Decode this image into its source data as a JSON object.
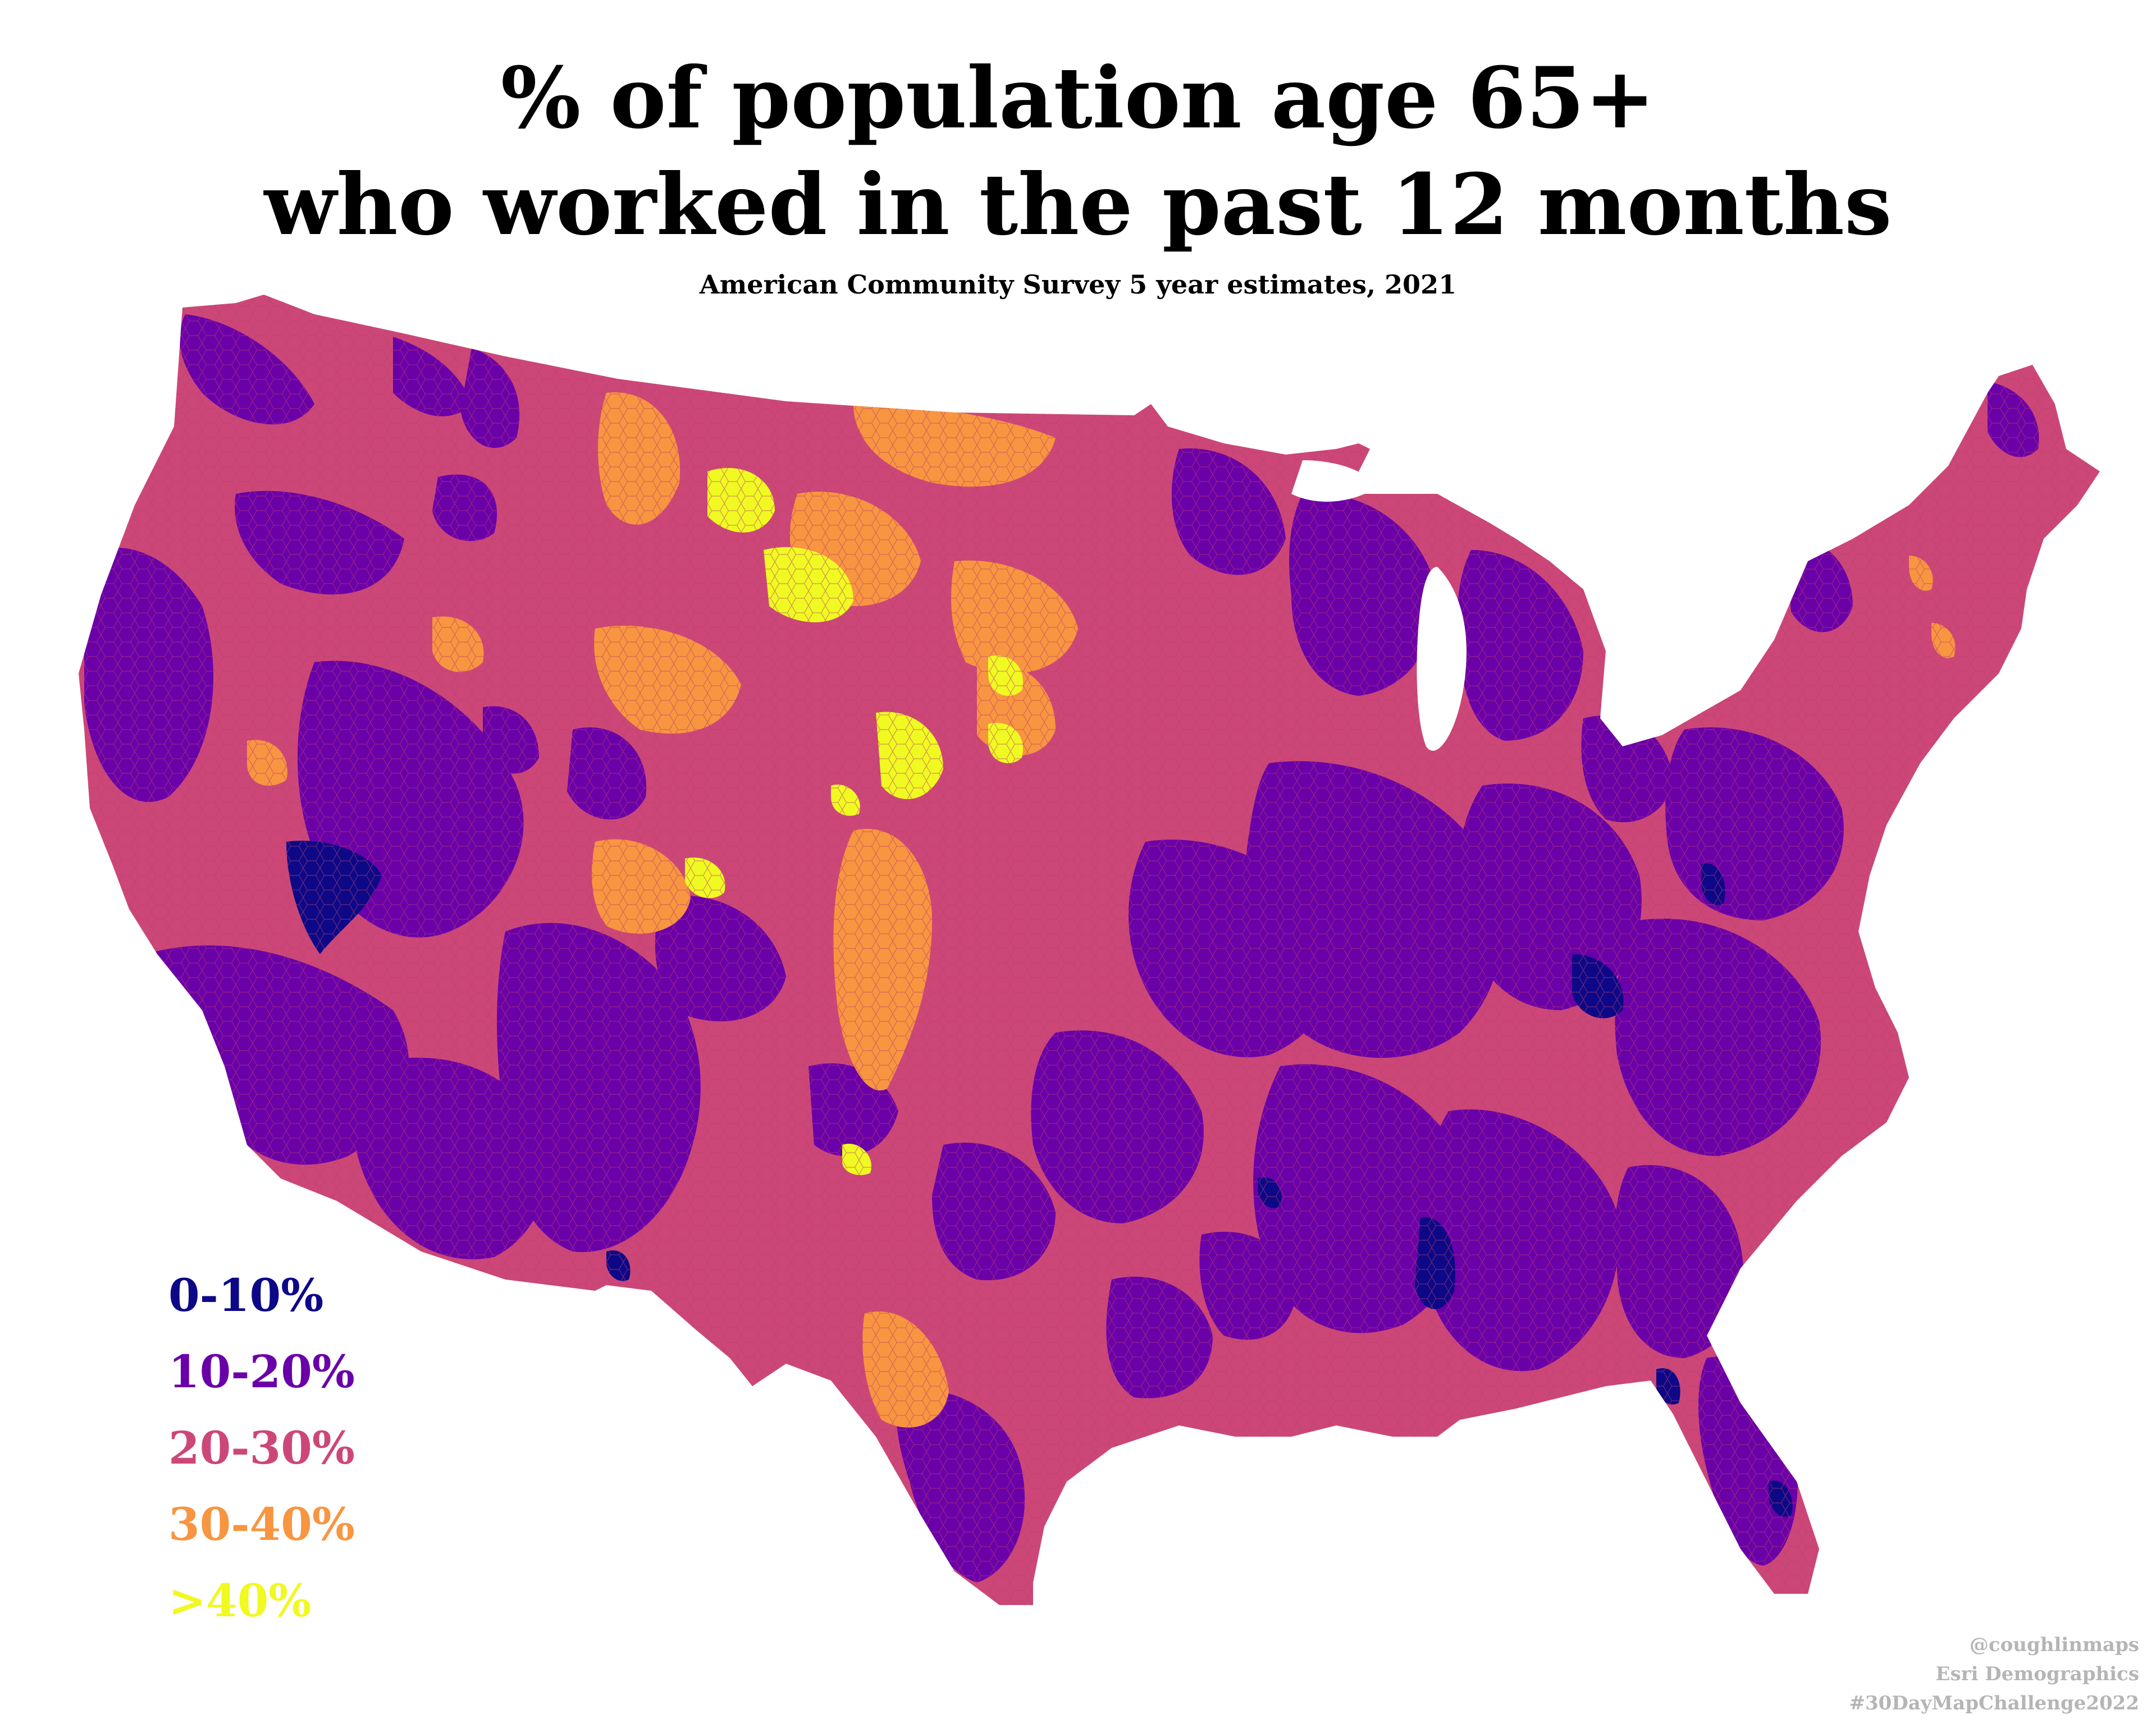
{
  "title": {
    "line1": "% of population age 65+",
    "line2": "who worked in the past 12 months"
  },
  "subtitle": "American Community Survey 5 year estimates, 2021",
  "legend": [
    {
      "label": "0-10%",
      "color": "#0d0887"
    },
    {
      "label": "10-20%",
      "color": "#6a00a8"
    },
    {
      "label": "20-30%",
      "color": "#cc4778"
    },
    {
      "label": "30-40%",
      "color": "#f89540"
    },
    {
      "label": ">40%",
      "color": "#f0f921"
    }
  ],
  "credits": {
    "line1": "@coughlinmaps",
    "line2": "Esri Demographics",
    "line3": "#30DayMapChallenge2022"
  },
  "map": {
    "base_class_color": "#cc4778",
    "hex_outline_color": "#b8406c"
  }
}
